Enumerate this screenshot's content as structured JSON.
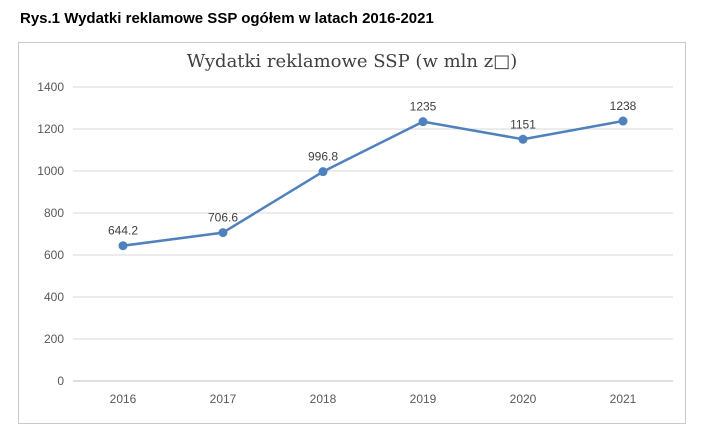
{
  "caption": "Rys.1 Wydatki reklamowe SSP ogółem w latach 2016-2021",
  "chart_data": {
    "type": "line",
    "title": "Wydatki reklamowe SSP (w mln z□)",
    "categories": [
      "2016",
      "2017",
      "2018",
      "2019",
      "2020",
      "2021"
    ],
    "series": [
      {
        "name": "Wydatki reklamowe SSP",
        "values": [
          644.2,
          706.6,
          996.8,
          1235,
          1151,
          1238
        ]
      }
    ],
    "data_labels": [
      "644.2",
      "706.6",
      "996.8",
      "1235",
      "1151",
      "1238"
    ],
    "xlabel": "",
    "ylabel": "",
    "ylim": [
      0,
      1400
    ],
    "yticks": [
      0,
      200,
      400,
      600,
      800,
      1000,
      1200,
      1400
    ],
    "grid": true,
    "legend": false,
    "colors": {
      "line": "#4f81bd",
      "marker": "#4f81bd",
      "gridline": "#d9d9d9",
      "axis": "#bfbfbf",
      "tick_label": "#595959",
      "data_label": "#404040",
      "title": "#404040"
    }
  }
}
